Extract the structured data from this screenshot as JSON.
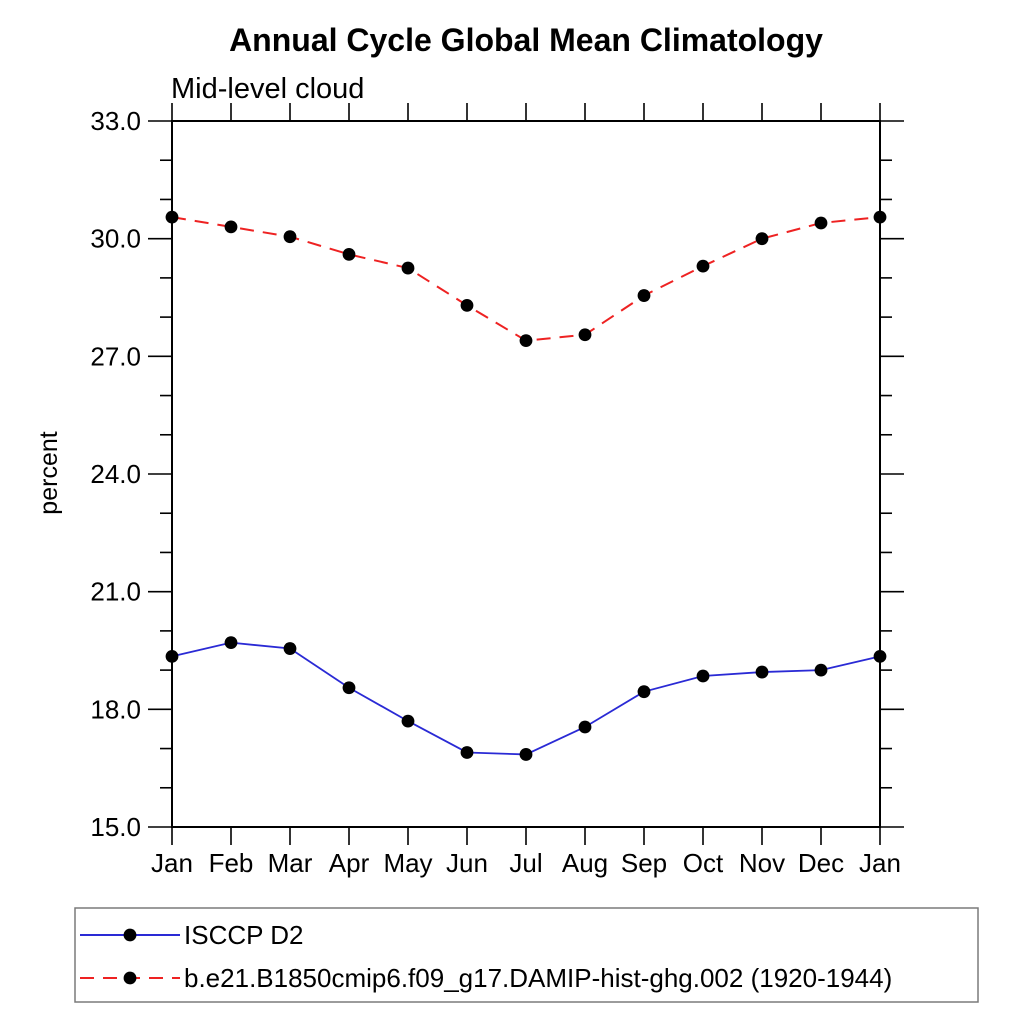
{
  "title": "Annual Cycle Global Mean Climatology",
  "subtitle": "Mid-level cloud",
  "ylabel": "percent",
  "colors": {
    "series1": "#2a2ad5",
    "series2": "#ee2222",
    "marker": "#000000",
    "axis": "#000000",
    "legend_border": "#7a7a7a"
  },
  "legend": {
    "items": [
      {
        "label": "ISCCP D2"
      },
      {
        "label": "b.e21.B1850cmip6.f09_g17.DAMIP-hist-ghg.002 (1920-1944)"
      }
    ]
  },
  "chart_data": {
    "type": "line",
    "title": "Annual Cycle Global Mean Climatology",
    "subtitle": "Mid-level cloud",
    "xlabel": "",
    "ylabel": "percent",
    "categories": [
      "Jan",
      "Feb",
      "Mar",
      "Apr",
      "May",
      "Jun",
      "Jul",
      "Aug",
      "Sep",
      "Oct",
      "Nov",
      "Dec",
      "Jan"
    ],
    "series": [
      {
        "name": "ISCCP D2",
        "color": "#2a2ad5",
        "line_style": "solid",
        "marker": "filled-black-circle",
        "values": [
          19.35,
          19.7,
          19.55,
          18.55,
          17.7,
          16.9,
          16.85,
          17.55,
          18.45,
          18.85,
          18.95,
          19.0,
          19.35
        ]
      },
      {
        "name": "b.e21.B1850cmip6.f09_g17.DAMIP-hist-ghg.002 (1920-1944)",
        "color": "#ee2222",
        "line_style": "dashed",
        "marker": "filled-black-circle",
        "values": [
          30.55,
          30.3,
          30.05,
          29.6,
          29.25,
          28.3,
          27.4,
          27.55,
          28.55,
          29.3,
          30.0,
          30.4,
          30.55
        ]
      }
    ],
    "ylim": [
      15.0,
      33.0
    ],
    "ytick_major_interval": 3.0,
    "ytick_minor_interval": 1.0,
    "ytick_major_labels": [
      "15.0",
      "18.0",
      "21.0",
      "24.0",
      "27.0",
      "30.0",
      "33.0"
    ],
    "grid": false,
    "legend_position": "bottom-left-box"
  }
}
